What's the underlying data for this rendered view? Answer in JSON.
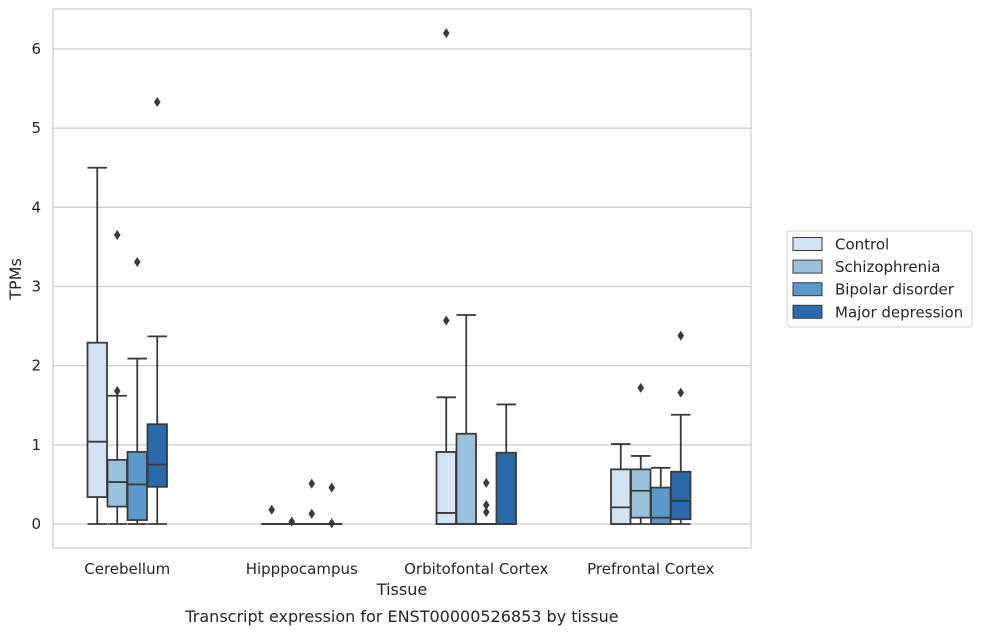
{
  "chart_data": {
    "type": "box",
    "title": "Transcript expression for ENST00000526853 by tissue",
    "xlabel": "Tissue",
    "ylabel": "TPMs",
    "categories": [
      "Cerebellum",
      "Hipppocampus",
      "Orbitofontal Cortex",
      "Prefrontal Cortex"
    ],
    "ylim": [
      -0.3,
      6.5
    ],
    "yticks": [
      0,
      1,
      2,
      3,
      4,
      5,
      6
    ],
    "grid": "horizontal",
    "legend_position": "right",
    "series": [
      {
        "name": "Control",
        "color": "#d4e3f3",
        "boxes": [
          {
            "whislo": 0.0,
            "q1": 0.34,
            "med": 1.04,
            "q3": 2.29,
            "whishi": 4.5,
            "fliers": []
          },
          {
            "whislo": 0.0,
            "q1": 0.0,
            "med": 0.0,
            "q3": 0.0,
            "whishi": 0.0,
            "fliers": [
              0.18
            ]
          },
          {
            "whislo": 0.0,
            "q1": 0.0,
            "med": 0.14,
            "q3": 0.91,
            "whishi": 1.6,
            "fliers": [
              2.57,
              6.2
            ]
          },
          {
            "whislo": 0.0,
            "q1": 0.0,
            "med": 0.21,
            "q3": 0.69,
            "whishi": 1.01,
            "fliers": []
          }
        ]
      },
      {
        "name": "Schizophrenia",
        "color": "#9ac2dd",
        "boxes": [
          {
            "whislo": 0.0,
            "q1": 0.22,
            "med": 0.53,
            "q3": 0.81,
            "whishi": 1.62,
            "fliers": [
              1.68,
              3.65
            ]
          },
          {
            "whislo": 0.0,
            "q1": 0.0,
            "med": 0.0,
            "q3": 0.0,
            "whishi": 0.0,
            "fliers": [
              0.03
            ]
          },
          {
            "whislo": 0.0,
            "q1": 0.0,
            "med": 0.0,
            "q3": 1.14,
            "whishi": 2.64,
            "fliers": []
          },
          {
            "whislo": 0.0,
            "q1": 0.08,
            "med": 0.42,
            "q3": 0.69,
            "whishi": 0.86,
            "fliers": [
              1.72
            ]
          }
        ]
      },
      {
        "name": "Bipolar disorder",
        "color": "#5b9ac8",
        "boxes": [
          {
            "whislo": 0.0,
            "q1": 0.05,
            "med": 0.5,
            "q3": 0.91,
            "whishi": 2.09,
            "fliers": [
              3.31
            ]
          },
          {
            "whislo": 0.0,
            "q1": 0.0,
            "med": 0.0,
            "q3": 0.0,
            "whishi": 0.0,
            "fliers": [
              0.13,
              0.51
            ]
          },
          {
            "whislo": 0.0,
            "q1": 0.0,
            "med": 0.0,
            "q3": 0.0,
            "whishi": 0.0,
            "fliers": [
              0.15,
              0.24,
              0.52
            ]
          },
          {
            "whislo": 0.0,
            "q1": 0.0,
            "med": 0.08,
            "q3": 0.46,
            "whishi": 0.71,
            "fliers": []
          }
        ]
      },
      {
        "name": "Major depression",
        "color": "#2a6aab",
        "boxes": [
          {
            "whislo": 0.0,
            "q1": 0.47,
            "med": 0.75,
            "q3": 1.26,
            "whishi": 2.37,
            "fliers": [
              5.33
            ]
          },
          {
            "whislo": 0.0,
            "q1": 0.0,
            "med": 0.0,
            "q3": 0.0,
            "whishi": 0.0,
            "fliers": [
              0.01,
              0.46
            ]
          },
          {
            "whislo": 0.0,
            "q1": 0.0,
            "med": 0.0,
            "q3": 0.9,
            "whishi": 1.51,
            "fliers": []
          },
          {
            "whislo": 0.0,
            "q1": 0.06,
            "med": 0.29,
            "q3": 0.66,
            "whishi": 1.38,
            "fliers": [
              1.66,
              2.38
            ]
          }
        ]
      }
    ]
  }
}
